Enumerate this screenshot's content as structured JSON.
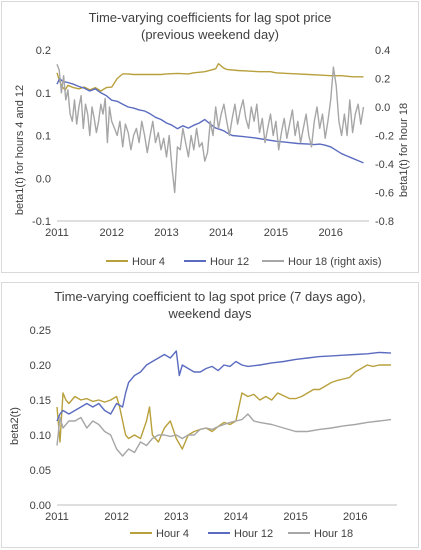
{
  "chart_data": [
    {
      "type": "line",
      "title_lines": [
        "Time-varying coefficients for lag spot price",
        "(previous weekend day)"
      ],
      "ylabel": "beta1(t) for hours 4 and 12",
      "y2label": "beta1(t) for hour 18",
      "xlim": [
        2011.0,
        2016.7
      ],
      "ylim": [
        -0.1,
        0.2
      ],
      "y2lim": [
        -0.8,
        0.4
      ],
      "yticks": [
        "0.2",
        "0.1",
        "0.1",
        "0.0",
        "-0.1"
      ],
      "yticks2": [
        "0.4",
        "0.2",
        "0.0",
        "-0.2",
        "-0.4",
        "-0.6",
        "-0.8"
      ],
      "xticks": [
        "2011",
        "2012",
        "2013",
        "2014",
        "2015",
        "2016"
      ],
      "grid": false,
      "legend_position": "bottom",
      "series": [
        {
          "name": "Hour 4",
          "color": "#b8a03c",
          "axis": "left",
          "x": [
            2011.0,
            2011.05,
            2011.1,
            2011.15,
            2011.2,
            2011.3,
            2011.4,
            2011.5,
            2011.6,
            2011.7,
            2011.8,
            2011.9,
            2012.0,
            2012.1,
            2012.2,
            2012.3,
            2012.4,
            2012.5,
            2012.7,
            2012.9,
            2013.0,
            2013.2,
            2013.4,
            2013.5,
            2013.7,
            2013.9,
            2013.95,
            2014.0,
            2014.05,
            2014.1,
            2014.3,
            2014.5,
            2014.7,
            2014.9,
            2015.0,
            2015.2,
            2015.4,
            2015.6,
            2015.8,
            2016.0,
            2016.2,
            2016.4,
            2016.6
          ],
          "y": [
            0.16,
            0.145,
            0.135,
            0.13,
            0.138,
            0.134,
            0.132,
            0.135,
            0.13,
            0.134,
            0.128,
            0.134,
            0.135,
            0.15,
            0.158,
            0.158,
            0.157,
            0.157,
            0.157,
            0.157,
            0.158,
            0.159,
            0.158,
            0.16,
            0.162,
            0.167,
            0.176,
            0.172,
            0.168,
            0.166,
            0.164,
            0.163,
            0.162,
            0.162,
            0.16,
            0.159,
            0.158,
            0.157,
            0.156,
            0.155,
            0.155,
            0.153,
            0.153
          ]
        },
        {
          "name": "Hour 12",
          "color": "#5b6cc0",
          "axis": "left",
          "x": [
            2011.0,
            2011.05,
            2011.1,
            2011.2,
            2011.3,
            2011.4,
            2011.5,
            2011.6,
            2011.7,
            2011.8,
            2011.9,
            2012.0,
            2012.1,
            2012.2,
            2012.3,
            2012.4,
            2012.5,
            2012.6,
            2012.7,
            2012.8,
            2012.9,
            2013.0,
            2013.1,
            2013.2,
            2013.3,
            2013.4,
            2013.5,
            2013.6,
            2013.7,
            2013.8,
            2013.9,
            2014.0,
            2014.05,
            2014.1,
            2014.2,
            2014.4,
            2014.6,
            2014.8,
            2015.0,
            2015.2,
            2015.4,
            2015.6,
            2015.7,
            2015.8,
            2015.9,
            2016.0,
            2016.1,
            2016.2,
            2016.3,
            2016.4,
            2016.5,
            2016.6
          ],
          "y": [
            0.14,
            0.15,
            0.145,
            0.143,
            0.14,
            0.136,
            0.133,
            0.128,
            0.132,
            0.125,
            0.12,
            0.112,
            0.11,
            0.105,
            0.1,
            0.098,
            0.095,
            0.093,
            0.088,
            0.082,
            0.078,
            0.072,
            0.068,
            0.062,
            0.067,
            0.063,
            0.068,
            0.072,
            0.078,
            0.07,
            0.063,
            0.06,
            0.058,
            0.055,
            0.05,
            0.048,
            0.046,
            0.043,
            0.04,
            0.038,
            0.036,
            0.035,
            0.034,
            0.035,
            0.033,
            0.03,
            0.024,
            0.018,
            0.014,
            0.01,
            0.006,
            0.002
          ]
        },
        {
          "name": "Hour 18 (right axis)",
          "color": "#a6a6a6",
          "axis": "right",
          "x": [
            2011.0,
            2011.04,
            2011.08,
            2011.12,
            2011.16,
            2011.2,
            2011.24,
            2011.28,
            2011.32,
            2011.36,
            2011.4,
            2011.44,
            2011.48,
            2011.52,
            2011.56,
            2011.6,
            2011.64,
            2011.68,
            2011.72,
            2011.76,
            2011.8,
            2011.84,
            2011.88,
            2011.92,
            2011.96,
            2012.0,
            2012.05,
            2012.1,
            2012.15,
            2012.2,
            2012.25,
            2012.3,
            2012.35,
            2012.4,
            2012.45,
            2012.5,
            2012.55,
            2012.6,
            2012.65,
            2012.7,
            2012.75,
            2012.8,
            2012.85,
            2012.9,
            2012.95,
            2013.0,
            2013.05,
            2013.1,
            2013.15,
            2013.2,
            2013.25,
            2013.3,
            2013.35,
            2013.4,
            2013.45,
            2013.5,
            2013.55,
            2013.6,
            2013.65,
            2013.7,
            2013.75,
            2013.8,
            2013.85,
            2013.9,
            2013.95,
            2014.0,
            2014.05,
            2014.1,
            2014.15,
            2014.2,
            2014.25,
            2014.3,
            2014.35,
            2014.4,
            2014.45,
            2014.5,
            2014.55,
            2014.6,
            2014.65,
            2014.7,
            2014.75,
            2014.8,
            2014.85,
            2014.9,
            2014.95,
            2015.0,
            2015.05,
            2015.1,
            2015.15,
            2015.2,
            2015.25,
            2015.3,
            2015.35,
            2015.4,
            2015.45,
            2015.5,
            2015.55,
            2015.6,
            2015.65,
            2015.7,
            2015.75,
            2015.8,
            2015.85,
            2015.9,
            2015.95,
            2016.0,
            2016.05,
            2016.1,
            2016.15,
            2016.2,
            2016.25,
            2016.3,
            2016.35,
            2016.4,
            2016.45,
            2016.5,
            2016.55,
            2016.6
          ],
          "y": [
            0.3,
            0.26,
            0.1,
            0.22,
            0.05,
            0.12,
            -0.05,
            -0.1,
            0.05,
            -0.12,
            0.0,
            0.08,
            -0.15,
            0.02,
            -0.05,
            -0.2,
            0.0,
            -0.08,
            -0.18,
            -0.1,
            0.02,
            -0.05,
            0.06,
            -0.25,
            0.0,
            -0.1,
            -0.15,
            -0.2,
            -0.1,
            -0.28,
            -0.12,
            -0.18,
            -0.3,
            -0.2,
            -0.15,
            -0.25,
            -0.1,
            -0.2,
            -0.32,
            -0.2,
            -0.1,
            -0.25,
            -0.18,
            -0.3,
            -0.22,
            -0.35,
            -0.2,
            -0.42,
            -0.6,
            -0.28,
            -0.3,
            -0.15,
            -0.25,
            -0.35,
            -0.2,
            -0.3,
            -0.15,
            -0.28,
            -0.25,
            -0.38,
            -0.32,
            -0.1,
            -0.2,
            0.0,
            -0.15,
            -0.05,
            0.02,
            -0.1,
            -0.2,
            -0.08,
            0.02,
            -0.12,
            -0.02,
            0.05,
            -0.08,
            -0.15,
            0.0,
            -0.1,
            0.02,
            -0.18,
            -0.08,
            -0.25,
            -0.15,
            -0.05,
            -0.2,
            -0.1,
            -0.3,
            -0.18,
            -0.08,
            -0.22,
            -0.12,
            -0.02,
            -0.2,
            -0.1,
            -0.25,
            -0.15,
            -0.05,
            -0.2,
            -0.28,
            -0.1,
            0.0,
            -0.15,
            -0.05,
            -0.22,
            -0.1,
            0.05,
            0.28,
            0.15,
            -0.1,
            -0.2,
            -0.05,
            -0.2,
            0.05,
            -0.18,
            -0.05,
            0.02,
            -0.12,
            0.0
          ]
        }
      ]
    },
    {
      "type": "line",
      "title_lines": [
        "Time-varying coefficient to lag spot price (7 days ago),",
        "weekend days"
      ],
      "ylabel": "beta2(t)",
      "xlim": [
        2011.0,
        2016.7
      ],
      "ylim": [
        0.0,
        0.25
      ],
      "yticks": [
        "0.25",
        "0.20",
        "0.15",
        "0.10",
        "0.05",
        "0.00"
      ],
      "xticks": [
        "2011",
        "2012",
        "2013",
        "2014",
        "2015",
        "2016"
      ],
      "grid": false,
      "legend_position": "bottom",
      "series": [
        {
          "name": "Hour 4",
          "color": "#b8a03c",
          "x": [
            2011.0,
            2011.05,
            2011.1,
            2011.15,
            2011.2,
            2011.3,
            2011.4,
            2011.5,
            2011.6,
            2011.7,
            2011.8,
            2011.9,
            2012.0,
            2012.05,
            2012.1,
            2012.15,
            2012.2,
            2012.3,
            2012.4,
            2012.5,
            2012.55,
            2012.6,
            2012.7,
            2012.8,
            2012.9,
            2013.0,
            2013.1,
            2013.2,
            2013.3,
            2013.4,
            2013.5,
            2013.6,
            2013.7,
            2013.8,
            2013.9,
            2014.0,
            2014.05,
            2014.1,
            2014.2,
            2014.3,
            2014.4,
            2014.5,
            2014.6,
            2014.7,
            2014.8,
            2014.9,
            2015.0,
            2015.1,
            2015.2,
            2015.3,
            2015.4,
            2015.5,
            2015.6,
            2015.7,
            2015.8,
            2015.9,
            2016.0,
            2016.1,
            2016.2,
            2016.3,
            2016.4,
            2016.5,
            2016.6
          ],
          "y": [
            0.14,
            0.09,
            0.16,
            0.15,
            0.145,
            0.155,
            0.15,
            0.152,
            0.148,
            0.15,
            0.147,
            0.15,
            0.155,
            0.14,
            0.12,
            0.1,
            0.095,
            0.1,
            0.095,
            0.12,
            0.14,
            0.1,
            0.09,
            0.11,
            0.12,
            0.095,
            0.08,
            0.1,
            0.105,
            0.108,
            0.11,
            0.105,
            0.112,
            0.118,
            0.115,
            0.12,
            0.14,
            0.16,
            0.155,
            0.158,
            0.15,
            0.155,
            0.15,
            0.16,
            0.156,
            0.152,
            0.152,
            0.155,
            0.16,
            0.165,
            0.165,
            0.17,
            0.175,
            0.178,
            0.18,
            0.182,
            0.19,
            0.195,
            0.2,
            0.198,
            0.2,
            0.2,
            0.2
          ]
        },
        {
          "name": "Hour 12",
          "color": "#5b6cc0",
          "x": [
            2011.0,
            2011.05,
            2011.1,
            2011.2,
            2011.3,
            2011.4,
            2011.5,
            2011.6,
            2011.7,
            2011.8,
            2011.9,
            2012.0,
            2012.1,
            2012.15,
            2012.2,
            2012.3,
            2012.4,
            2012.5,
            2012.6,
            2012.7,
            2012.8,
            2012.9,
            2013.0,
            2013.05,
            2013.1,
            2013.2,
            2013.3,
            2013.4,
            2013.5,
            2013.6,
            2013.7,
            2013.8,
            2013.9,
            2014.0,
            2014.1,
            2014.2,
            2014.4,
            2014.6,
            2014.8,
            2015.0,
            2015.2,
            2015.4,
            2015.6,
            2015.8,
            2016.0,
            2016.2,
            2016.4,
            2016.6
          ],
          "y": [
            0.12,
            0.13,
            0.135,
            0.13,
            0.135,
            0.14,
            0.145,
            0.14,
            0.145,
            0.135,
            0.13,
            0.145,
            0.14,
            0.16,
            0.175,
            0.185,
            0.19,
            0.2,
            0.205,
            0.21,
            0.215,
            0.21,
            0.22,
            0.185,
            0.2,
            0.195,
            0.19,
            0.19,
            0.195,
            0.198,
            0.192,
            0.2,
            0.198,
            0.205,
            0.2,
            0.198,
            0.2,
            0.203,
            0.205,
            0.208,
            0.21,
            0.212,
            0.213,
            0.214,
            0.215,
            0.216,
            0.218,
            0.217
          ]
        },
        {
          "name": "Hour 18",
          "color": "#a6a6a6",
          "x": [
            2011.0,
            2011.05,
            2011.1,
            2011.15,
            2011.2,
            2011.3,
            2011.4,
            2011.5,
            2011.6,
            2011.7,
            2011.8,
            2011.9,
            2012.0,
            2012.1,
            2012.2,
            2012.3,
            2012.4,
            2012.5,
            2012.6,
            2012.7,
            2012.8,
            2012.9,
            2013.0,
            2013.1,
            2013.2,
            2013.3,
            2013.4,
            2013.5,
            2013.6,
            2013.7,
            2013.8,
            2013.9,
            2014.0,
            2014.1,
            2014.2,
            2014.3,
            2014.4,
            2014.6,
            2014.8,
            2015.0,
            2015.2,
            2015.4,
            2015.6,
            2015.8,
            2016.0,
            2016.2,
            2016.4,
            2016.6
          ],
          "y": [
            0.085,
            0.125,
            0.11,
            0.115,
            0.12,
            0.12,
            0.125,
            0.11,
            0.12,
            0.115,
            0.105,
            0.1,
            0.08,
            0.07,
            0.08,
            0.075,
            0.09,
            0.085,
            0.095,
            0.1,
            0.1,
            0.098,
            0.1,
            0.095,
            0.1,
            0.1,
            0.108,
            0.11,
            0.108,
            0.112,
            0.115,
            0.118,
            0.12,
            0.122,
            0.13,
            0.12,
            0.118,
            0.115,
            0.11,
            0.105,
            0.105,
            0.108,
            0.11,
            0.113,
            0.115,
            0.118,
            0.12,
            0.122
          ]
        }
      ]
    }
  ]
}
